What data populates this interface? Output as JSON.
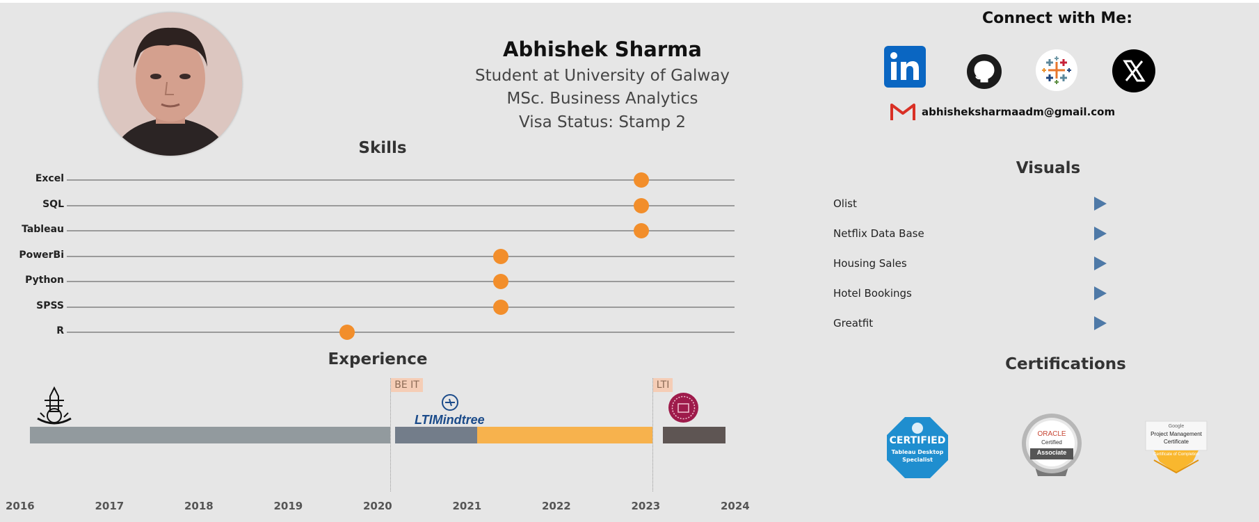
{
  "profile": {
    "name": "Abhishek Sharma",
    "lines": [
      "Student at University of Galway",
      "MSc. Business Analytics",
      "Visa Status: Stamp 2"
    ]
  },
  "connect": {
    "title": "Connect with Me:",
    "icons": [
      "linkedin-icon",
      "github-icon",
      "tableau-icon",
      "x-icon"
    ],
    "email": "abhisheksharmaadm@gmail.com"
  },
  "skills": {
    "title": "Skills",
    "scale_min": 0,
    "scale_max": 10,
    "items": [
      {
        "label": "Excel",
        "level": 8.6
      },
      {
        "label": "SQL",
        "level": 8.6
      },
      {
        "label": "Tableau",
        "level": 8.6
      },
      {
        "label": "PowerBi",
        "level": 6.5
      },
      {
        "label": "Python",
        "level": 6.5
      },
      {
        "label": "SPSS",
        "level": 6.5
      },
      {
        "label": "R",
        "level": 4.2
      }
    ]
  },
  "experience": {
    "title": "Experience",
    "years": [
      "2016",
      "2017",
      "2018",
      "2019",
      "2020",
      "2021",
      "2022",
      "2023",
      "2024"
    ],
    "markers": [
      {
        "label": "BE IT",
        "year": 2020.15
      },
      {
        "label": "LTI",
        "year": 2023.08
      }
    ],
    "segments": [
      {
        "start": 2016.12,
        "end": 2020.15,
        "color": "#929a9e"
      },
      {
        "start": 2020.2,
        "end": 2021.12,
        "color": "#737d8a"
      },
      {
        "start": 2021.12,
        "end": 2023.08,
        "color": "#f7b24d"
      },
      {
        "start": 2023.2,
        "end": 2023.9,
        "color": "#5e5553"
      }
    ],
    "logo_text": "LTIMindtree"
  },
  "visuals": {
    "title": "Visuals",
    "items": [
      "Olist",
      "Netflix Data Base",
      "Housing Sales",
      "Hotel Bookings",
      "Greatfit"
    ]
  },
  "certifications": {
    "title": "Certifications",
    "tableau": {
      "line1": "CERTIFIED",
      "line2": "Tableau Desktop",
      "line3": "Specialist"
    },
    "oracle": {
      "line1": "ORACLE",
      "line2": "Certified",
      "line3": "Associate"
    },
    "google": {
      "line1": "Google",
      "line2": "Project Management",
      "line3": "Certificate",
      "line4": "Certificate of Completion"
    }
  },
  "colors": {
    "accent_orange": "#f28e2b",
    "play_blue": "#4e79a7",
    "background": "#e6e6e6"
  }
}
